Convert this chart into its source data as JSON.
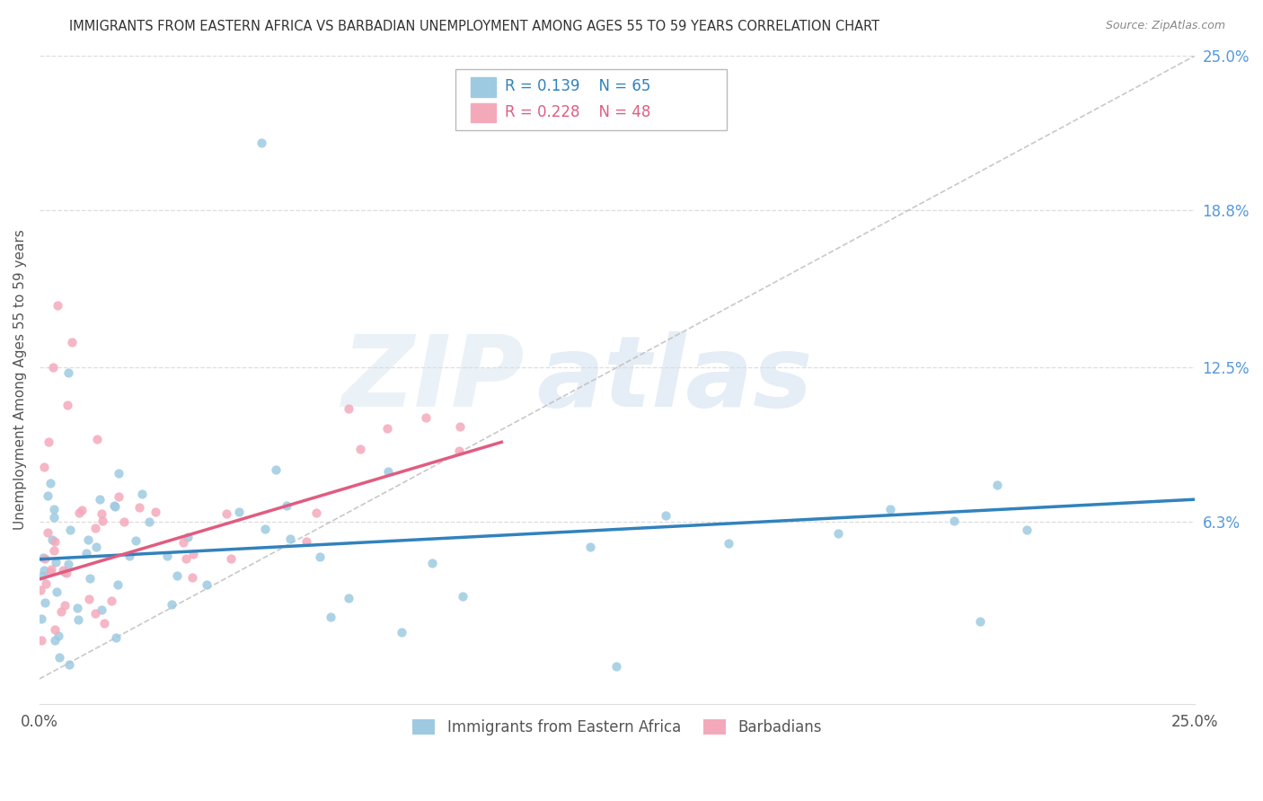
{
  "title": "IMMIGRANTS FROM EASTERN AFRICA VS BARBADIAN UNEMPLOYMENT AMONG AGES 55 TO 59 YEARS CORRELATION CHART",
  "source": "Source: ZipAtlas.com",
  "ylabel": "Unemployment Among Ages 55 to 59 years",
  "x_min": 0.0,
  "x_max": 0.25,
  "y_min": -0.01,
  "y_max": 0.25,
  "x_tick_labels": [
    "0.0%",
    "25.0%"
  ],
  "x_ticks": [
    0.0,
    0.25
  ],
  "y_tick_labels_right": [
    "6.3%",
    "12.5%",
    "18.8%",
    "25.0%"
  ],
  "y_ticks_right": [
    0.063,
    0.125,
    0.188,
    0.25
  ],
  "blue_R": 0.139,
  "blue_N": 65,
  "pink_R": 0.228,
  "pink_N": 48,
  "blue_color": "#9ecae1",
  "pink_color": "#f4a9bb",
  "blue_line_color": "#3182bd",
  "pink_line_color": "#e05c80",
  "grid_color": "#cccccc",
  "legend_label_blue": "Immigrants from Eastern Africa",
  "legend_label_pink": "Barbadians",
  "blue_trend_x": [
    0.0,
    0.25
  ],
  "blue_trend_y": [
    0.048,
    0.072
  ],
  "pink_trend_x": [
    0.0,
    0.1
  ],
  "pink_trend_y": [
    0.04,
    0.095
  ],
  "diag_line_x": [
    0.0,
    0.25
  ],
  "diag_line_y": [
    0.0,
    0.25
  ]
}
